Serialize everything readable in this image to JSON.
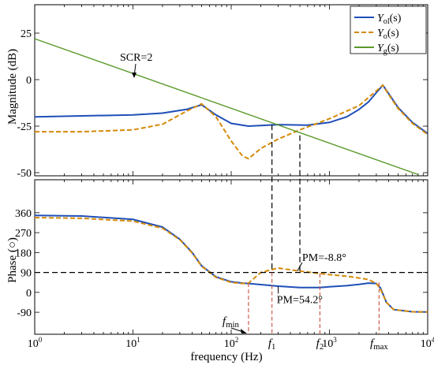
{
  "chart_data": [
    {
      "type": "line",
      "panel": "magnitude",
      "ylabel": "Magnitude (dB)",
      "yticks": [
        25,
        0,
        -25,
        -50
      ],
      "ylim": [
        -50,
        40
      ],
      "x_scale": "log",
      "xlim": [
        1,
        10000
      ],
      "grid": false,
      "legend": {
        "position": "top-right",
        "entries": [
          {
            "main": "Y",
            "sub": "ol",
            "tail": "(s)",
            "color": "#1f4fb8",
            "style": "solid"
          },
          {
            "main": "Y",
            "sub": "o",
            "tail": "(s)",
            "color": "#d48a08",
            "style": "dashed"
          },
          {
            "main": "Y",
            "sub": "g",
            "tail": "(s)",
            "color": "#5a9a2a",
            "style": "solid"
          }
        ]
      },
      "annotation": "SCR=2",
      "series": [
        {
          "key": "Yol",
          "x": [
            1,
            3,
            10,
            20,
            35,
            50,
            70,
            100,
            150,
            300,
            600,
            1000,
            1500,
            2000,
            2500,
            3000,
            3500,
            4000,
            5000,
            7000,
            10000
          ],
          "y": [
            -20,
            -19.5,
            -19,
            -18,
            -16,
            -13.5,
            -19,
            -23.5,
            -25,
            -24.2,
            -24.5,
            -23,
            -20,
            -16,
            -12,
            -7,
            -3,
            -7.5,
            -15,
            -23,
            -29
          ]
        },
        {
          "key": "Yo",
          "x": [
            1,
            3,
            10,
            20,
            35,
            50,
            70,
            100,
            130,
            150,
            200,
            300,
            500,
            1000,
            2000,
            3000,
            3500,
            4000,
            5000,
            7000,
            10000
          ],
          "y": [
            -28,
            -28,
            -27,
            -24,
            -17,
            -13,
            -20,
            -33,
            -41,
            -42.5,
            -37,
            -32,
            -27,
            -21,
            -14,
            -6,
            -3,
            -8,
            -15.5,
            -23.5,
            -29.5
          ]
        },
        {
          "key": "Yg",
          "x": [
            1,
            8000
          ],
          "y": [
            22,
            -51
          ]
        }
      ]
    },
    {
      "type": "line",
      "panel": "phase",
      "ylabel": "Phase (○)",
      "xlabel": "frequency (Hz)",
      "x_scale": "log",
      "xlim": [
        1,
        10000
      ],
      "ylim": [
        -90,
        370
      ],
      "yticks": [
        360,
        270,
        180,
        90,
        0,
        -90
      ],
      "xticks": [
        {
          "base": "10",
          "exp": "0"
        },
        {
          "base": "10",
          "exp": "1"
        },
        {
          "base": "10",
          "exp": "2"
        },
        {
          "base": "10",
          "exp": "3"
        },
        {
          "base": "10",
          "exp": "4"
        }
      ],
      "grid": false,
      "series": [
        {
          "key": "Yol",
          "x": [
            1,
            3,
            10,
            20,
            30,
            40,
            50,
            70,
            100,
            130,
            150,
            200,
            300,
            500,
            800,
            1000,
            1500,
            2000,
            2500,
            3000,
            3300,
            3800,
            4500,
            7000,
            10000
          ],
          "y": [
            348,
            345,
            330,
            295,
            240,
            180,
            120,
            70,
            48,
            42,
            40,
            35,
            28,
            22,
            22,
            25,
            30,
            36,
            42,
            40,
            20,
            -45,
            -78,
            -88,
            -89
          ]
        },
        {
          "key": "Yo",
          "x": [
            1,
            3,
            10,
            20,
            30,
            40,
            50,
            70,
            100,
            130,
            150,
            200,
            300,
            500,
            800,
            1000,
            1500,
            2000,
            2500,
            3000,
            3300,
            3800,
            4500,
            7000,
            10000
          ],
          "y": [
            338,
            335,
            322,
            290,
            238,
            178,
            118,
            68,
            45,
            40,
            42,
            90,
            110,
            96,
            85,
            80,
            73,
            65,
            58,
            40,
            15,
            -45,
            -78,
            -88,
            -89
          ]
        }
      ],
      "reference_line": {
        "y": 90,
        "style": "dashed"
      },
      "freq_markers": [
        {
          "label": "f",
          "sub": "min",
          "x": 150
        },
        {
          "label": "f",
          "sub": "1",
          "x": 260
        },
        {
          "label": "f",
          "sub": "2",
          "x": 800
        },
        {
          "label": "f",
          "sub": "max",
          "x": 3200
        }
      ],
      "crossover_markers": [
        {
          "x": 260,
          "to_panel": "magnitude",
          "y": -24.2
        },
        {
          "x": 500,
          "to_panel": "magnitude",
          "y": -30
        }
      ],
      "annotations": [
        {
          "text": "PM=54.2°",
          "x": 350,
          "y": 30
        },
        {
          "text": "PM=-8.8°",
          "x": 490,
          "y": 92
        }
      ]
    }
  ]
}
